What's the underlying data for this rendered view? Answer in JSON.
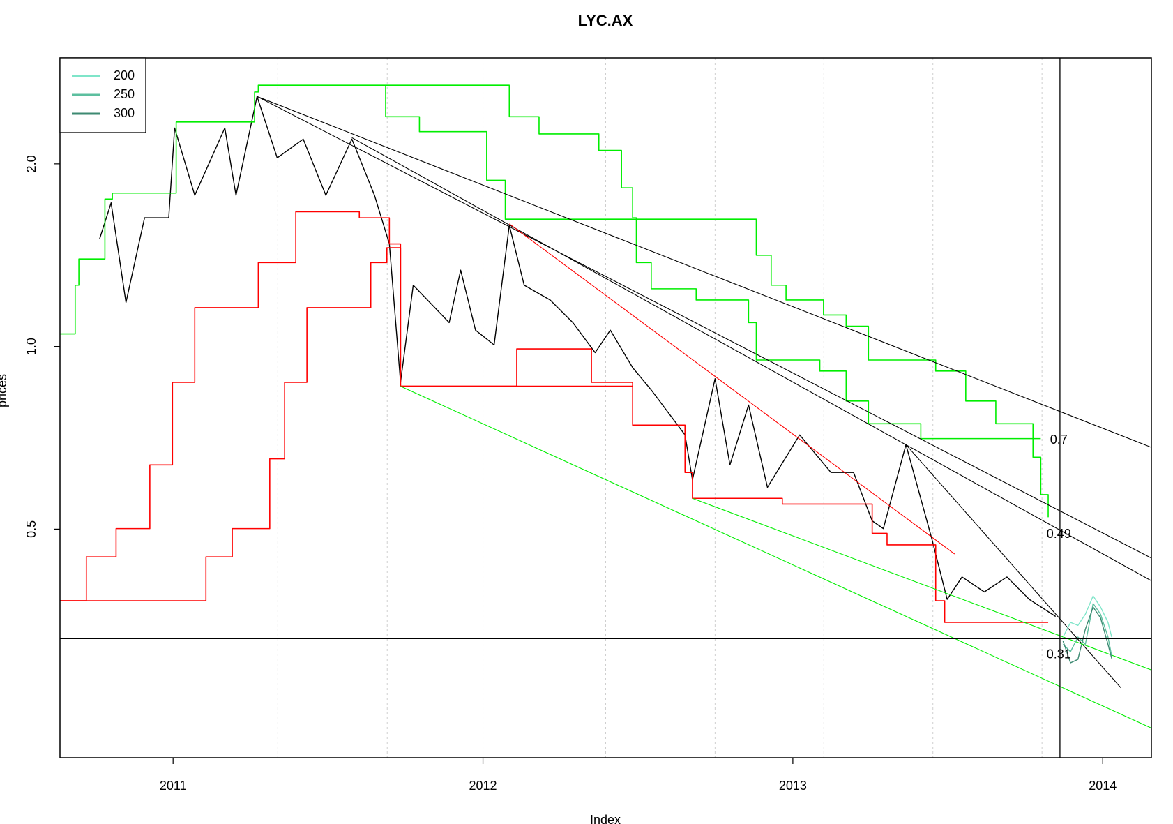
{
  "chart_data": {
    "type": "line",
    "title": "LYC.AX",
    "x_label": "Index",
    "y_label": "prices",
    "xlim": [
      2010.635,
      2014.157
    ],
    "ylim": [
      0.21,
      2.99
    ],
    "log_y": true,
    "xticks": [
      2011,
      2012,
      2013,
      2014
    ],
    "yticks": [
      0.5,
      {
        "value": 1,
        "label": "1.0"
      },
      {
        "value": 2,
        "label": "2.0"
      }
    ],
    "vgrid": [
      2011.338,
      2011.691,
      2012.0,
      2012.396,
      2012.749,
      2013.1,
      2013.452,
      2013.804
    ],
    "legend": "topleft",
    "hlines": [
      0.33
    ],
    "vlines": [
      2013.862
    ],
    "annotations": [
      {
        "text": "0.7",
        "x": 2013.83,
        "y": 0.7
      },
      {
        "text": "0.49",
        "x": 2013.819,
        "y": 0.49
      },
      {
        "text": "0.31",
        "x": 2013.819,
        "y": 0.31
      }
    ],
    "series": [
      {
        "color": "#000000",
        "x": [
          2010.763,
          2010.8,
          2010.848,
          2010.908,
          2010.986,
          2011.005,
          2011.07,
          2011.167,
          2011.203,
          2011.271,
          2011.336,
          2011.42,
          2011.493,
          2011.577,
          2011.65,
          2011.698,
          2011.734,
          2011.775,
          2011.891,
          2011.928,
          2011.976,
          2012.036,
          2012.085,
          2012.133,
          2012.217,
          2012.29,
          2012.362,
          2012.411,
          2012.483,
          2012.543,
          2012.652,
          2012.676,
          2012.749,
          2012.797,
          2012.857,
          2012.918,
          2013.022,
          2013.123,
          2013.196,
          2013.256,
          2013.292,
          2013.365,
          2013.449,
          2013.498,
          2013.546,
          2013.618,
          2013.691,
          2013.763,
          2013.848
        ],
        "values": [
          1.505,
          1.725,
          1.182,
          1.63,
          1.63,
          2.292,
          1.775,
          2.292,
          1.775,
          2.583,
          2.046,
          2.197,
          1.775,
          2.197,
          1.775,
          1.476,
          0.873,
          1.262,
          1.095,
          1.336,
          1.064,
          1.006,
          1.584,
          1.262,
          1.193,
          1.095,
          0.977,
          1.064,
          0.923,
          0.848,
          0.715,
          0.603,
          0.885,
          0.638,
          0.801,
          0.586,
          0.715,
          0.62,
          0.62,
          0.516,
          0.501,
          0.689,
          0.481,
          0.383,
          0.417,
          0.394,
          0.417,
          0.383,
          0.359
        ]
      },
      {
        "color": "#ff0000",
        "step": true,
        "x": [
          2010.635,
          2010.72,
          2010.816,
          2010.925,
          2010.998,
          2011.07,
          2011.275,
          2011.396,
          2011.601,
          2011.698,
          2011.734,
          2012.109,
          2012.35,
          2012.483,
          2012.652,
          2012.676,
          2012.966,
          2013.256,
          2013.304,
          2013.461,
          2013.49,
          2013.824
        ],
        "values": [
          0.381,
          0.45,
          0.501,
          0.638,
          0.873,
          1.159,
          1.375,
          1.668,
          1.63,
          1.476,
          0.86,
          0.991,
          0.873,
          0.742,
          0.62,
          0.562,
          0.55,
          0.492,
          0.471,
          0.381,
          0.351,
          0.351
        ]
      },
      {
        "color": "#ff0000",
        "step": true,
        "x": [
          2010.635,
          2011.106,
          2011.191,
          2011.312,
          2011.36,
          2011.432,
          2011.638,
          2011.69,
          2011.734,
          2012.483
        ],
        "values": [
          0.381,
          0.45,
          0.501,
          0.653,
          0.873,
          1.159,
          1.375,
          1.455,
          0.86,
          0.86
        ]
      },
      {
        "color": "#00ee00",
        "step": true,
        "x": [
          2010.635,
          2010.684,
          2010.696,
          2010.78,
          2010.804,
          2011.01,
          2011.263,
          2011.275,
          2011.686,
          2011.795,
          2012.012,
          2012.072,
          2012.882,
          2012.93,
          2012.978,
          2013.099,
          2013.172,
          2013.244,
          2013.461,
          2013.558,
          2013.655,
          2013.775,
          2013.8,
          2013.824
        ],
        "values": [
          1.049,
          1.262,
          1.394,
          1.75,
          1.79,
          2.345,
          2.627,
          2.695,
          2.392,
          2.26,
          1.879,
          1.621,
          1.414,
          1.262,
          1.193,
          1.127,
          1.08,
          0.95,
          0.911,
          0.813,
          0.746,
          0.657,
          0.57,
          0.523
        ]
      },
      {
        "color": "#00ee00",
        "step": true,
        "x": [
          2011.686,
          2012.085,
          2012.181,
          2012.374,
          2012.447,
          2012.483,
          2012.495,
          2012.543,
          2012.688,
          2012.857,
          2012.882,
          2013.087,
          2013.172,
          2013.244,
          2013.413,
          2013.8
        ],
        "values": [
          2.695,
          2.392,
          2.241,
          2.105,
          1.826,
          1.63,
          1.375,
          1.245,
          1.193,
          1.095,
          0.95,
          0.911,
          0.813,
          0.746,
          0.705,
          0.705
        ]
      },
      {
        "color": "#000000",
        "thin": true,
        "x": [
          2011.271,
          2014.157
        ],
        "values": [
          2.583,
          0.682
        ]
      },
      {
        "color": "#000000",
        "thin": true,
        "x": [
          2011.271,
          2014.157
        ],
        "values": [
          2.583,
          0.448
        ]
      },
      {
        "color": "#000000",
        "thin": true,
        "x": [
          2011.577,
          2014.157
        ],
        "values": [
          2.209,
          0.411
        ]
      },
      {
        "color": "#000000",
        "thin": true,
        "x": [
          2013.365,
          2014.058
        ],
        "values": [
          0.689,
          0.274
        ]
      },
      {
        "color": "#ff0000",
        "thin": true,
        "x": [
          2012.085,
          2013.522
        ],
        "values": [
          1.593,
          0.455
        ]
      },
      {
        "color": "#00ee00",
        "thin": true,
        "x": [
          2011.734,
          2014.157
        ],
        "values": [
          0.86,
          0.235
        ]
      },
      {
        "color": "#00ee00",
        "thin": true,
        "x": [
          2012.676,
          2014.157
        ],
        "values": [
          0.562,
          0.293
        ]
      },
      {
        "name": "200",
        "color": "#7fe5c9",
        "x": [
          2013.872,
          2013.896,
          2013.92,
          2013.944,
          2013.969,
          2013.993,
          2014.017,
          2014.029
        ],
        "values": [
          0.332,
          0.351,
          0.347,
          0.362,
          0.388,
          0.372,
          0.351,
          0.332
        ]
      },
      {
        "name": "250",
        "color": "#5cbf9f",
        "x": [
          2013.872,
          2013.896,
          2013.92,
          2013.944,
          2013.969,
          2013.993,
          2014.017,
          2014.029
        ],
        "values": [
          0.323,
          0.314,
          0.332,
          0.323,
          0.377,
          0.362,
          0.332,
          0.309
        ]
      },
      {
        "name": "300",
        "color": "#3d8a72",
        "x": [
          2013.872,
          2013.896,
          2013.92,
          2013.944,
          2013.969,
          2013.993,
          2014.017,
          2014.029
        ],
        "values": [
          0.327,
          0.301,
          0.305,
          0.342,
          0.372,
          0.357,
          0.323,
          0.306
        ]
      }
    ]
  }
}
